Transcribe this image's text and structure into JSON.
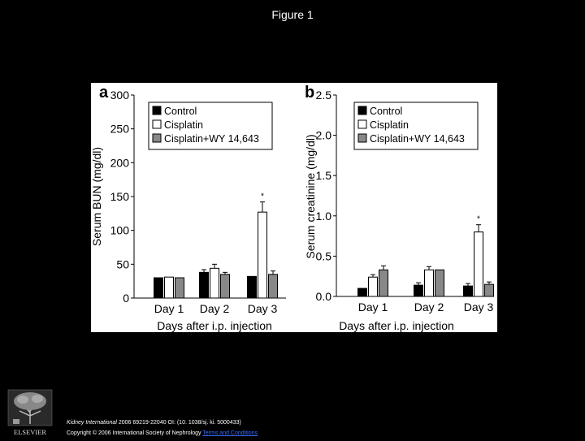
{
  "slide": {
    "title": "Figure 1"
  },
  "footer": {
    "journal": "Kidney International",
    "citation": " 2006 69219-22040 OI: (10. 1038/sj. ki. 5000433)",
    "copyright": "Copyright © 2006 International Society of Nephrology ",
    "terms_link": "Terms and Conditions"
  },
  "publisher": {
    "logo_text": "ELSEVIER"
  },
  "colors": {
    "control": "#000000",
    "cisplatin": "#ffffff",
    "cisplatin_wy": "#888888"
  },
  "chart_data": [
    {
      "type": "bar",
      "panel_label": "a",
      "title": "",
      "xlabel": "Days after i.p. injection",
      "ylabel": "Serum BUN (mg/dl)",
      "categories": [
        "Day 1",
        "Day 2",
        "Day 3"
      ],
      "ylim": [
        0,
        300
      ],
      "yticks": [
        0,
        50,
        100,
        150,
        200,
        250,
        300
      ],
      "ytick_labels": [
        "0",
        "50",
        "100",
        "150",
        "200",
        "250",
        "300"
      ],
      "legend_position": "top-left",
      "series": [
        {
          "name": "Control",
          "values": [
            30,
            38,
            32
          ],
          "errors": [
            0,
            4,
            0
          ]
        },
        {
          "name": "Cisplatin",
          "values": [
            31,
            44,
            127
          ],
          "errors": [
            0,
            6,
            15
          ]
        },
        {
          "name": "Cisplatin+WY 14,643",
          "values": [
            30,
            35,
            35
          ],
          "errors": [
            0,
            3,
            5
          ]
        }
      ],
      "annotations": [
        {
          "text": "*",
          "category": "Day 3",
          "series": "Cisplatin"
        }
      ]
    },
    {
      "type": "bar",
      "panel_label": "b",
      "title": "",
      "xlabel": "Days after i.p. injection",
      "ylabel": "Serum creatinine (mg/dl)",
      "categories": [
        "Day 1",
        "Day 2",
        "Day 3"
      ],
      "ylim": [
        0,
        2.5
      ],
      "yticks": [
        0,
        0.5,
        1.0,
        1.5,
        2.0,
        2.5
      ],
      "ytick_labels": [
        "0.0",
        "0.5",
        "1.0",
        "1.5",
        "2.0",
        "2.5"
      ],
      "legend_position": "top-left",
      "series": [
        {
          "name": "Control",
          "values": [
            0.1,
            0.14,
            0.13
          ],
          "errors": [
            0,
            0.03,
            0.03
          ]
        },
        {
          "name": "Cisplatin",
          "values": [
            0.24,
            0.33,
            0.8
          ],
          "errors": [
            0.03,
            0.04,
            0.09
          ]
        },
        {
          "name": "Cisplatin+WY 14,643",
          "values": [
            0.33,
            0.33,
            0.15
          ],
          "errors": [
            0.05,
            0,
            0.03
          ]
        }
      ],
      "annotations": [
        {
          "text": "*",
          "category": "Day 3",
          "series": "Cisplatin"
        }
      ]
    }
  ]
}
